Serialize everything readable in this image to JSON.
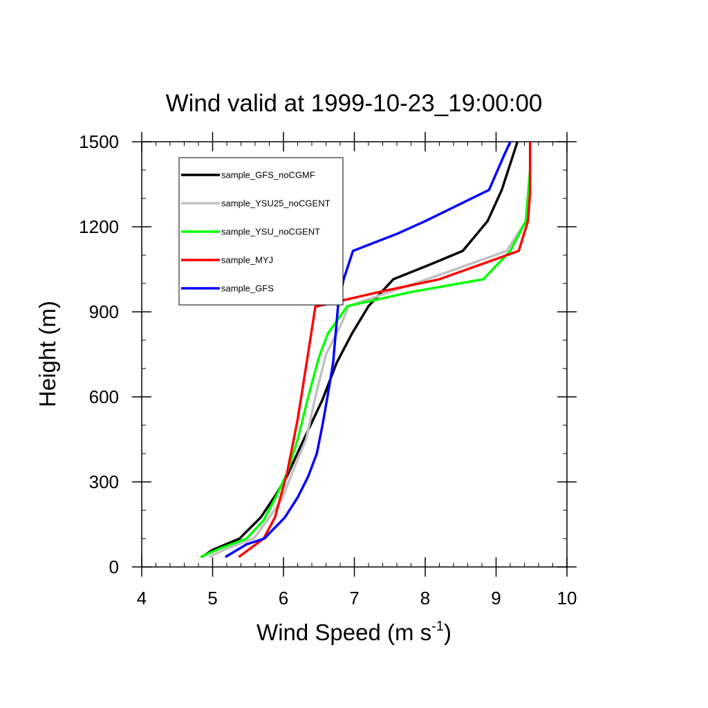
{
  "chart_data": {
    "type": "line",
    "title": "Wind valid at 1999-10-23_19:00:00",
    "xlabel": "Wind Speed (m s",
    "xlabel_superscript": "-1",
    "xlabel_suffix": ")",
    "ylabel": "Height (m)",
    "xlim": [
      4,
      10
    ],
    "ylim": [
      0,
      1500
    ],
    "x_ticks": [
      "4",
      "5",
      "6",
      "7",
      "8",
      "9",
      "10"
    ],
    "y_ticks": [
      "0",
      "300",
      "600",
      "900",
      "1200",
      "1500"
    ],
    "grid": false,
    "legend_position": "upper-left inside plot",
    "series": [
      {
        "name": "sample_GFS_noCGMF",
        "color": "#000000",
        "points": [
          [
            4.85,
            35
          ],
          [
            5.0,
            60
          ],
          [
            5.38,
            100
          ],
          [
            5.68,
            175
          ],
          [
            5.88,
            250
          ],
          [
            6.05,
            320
          ],
          [
            6.25,
            430
          ],
          [
            6.55,
            590
          ],
          [
            6.75,
            720
          ],
          [
            6.97,
            825
          ],
          [
            7.2,
            920
          ],
          [
            7.55,
            1015
          ],
          [
            8.05,
            1065
          ],
          [
            8.53,
            1115
          ],
          [
            8.88,
            1220
          ],
          [
            9.08,
            1330
          ],
          [
            9.23,
            1445
          ],
          [
            9.3,
            1500
          ]
        ]
      },
      {
        "name": "sample_YSU25_noCGENT",
        "color": "#c0c0c0",
        "points": [
          [
            4.95,
            35
          ],
          [
            5.2,
            65
          ],
          [
            5.58,
            100
          ],
          [
            5.8,
            175
          ],
          [
            5.98,
            240
          ],
          [
            6.15,
            350
          ],
          [
            6.32,
            450
          ],
          [
            6.45,
            600
          ],
          [
            6.6,
            750
          ],
          [
            6.82,
            860
          ],
          [
            6.92,
            920
          ],
          [
            7.5,
            970
          ],
          [
            8.2,
            1030
          ],
          [
            9.15,
            1115
          ],
          [
            9.42,
            1220
          ],
          [
            9.48,
            1400
          ],
          [
            9.48,
            1500
          ]
        ]
      },
      {
        "name": "sample_YSU_noCGENT",
        "color": "#00ff00",
        "points": [
          [
            4.83,
            35
          ],
          [
            5.1,
            65
          ],
          [
            5.48,
            100
          ],
          [
            5.72,
            165
          ],
          [
            5.88,
            240
          ],
          [
            6.05,
            330
          ],
          [
            6.2,
            450
          ],
          [
            6.35,
            600
          ],
          [
            6.5,
            740
          ],
          [
            6.63,
            825
          ],
          [
            6.9,
            920
          ],
          [
            7.8,
            970
          ],
          [
            8.82,
            1015
          ],
          [
            9.2,
            1115
          ],
          [
            9.42,
            1220
          ],
          [
            9.48,
            1400
          ],
          [
            9.48,
            1500
          ]
        ]
      },
      {
        "name": "sample_MYJ",
        "color": "#ff0000",
        "points": [
          [
            5.37,
            35
          ],
          [
            5.72,
            100
          ],
          [
            5.88,
            175
          ],
          [
            6.05,
            330
          ],
          [
            6.2,
            520
          ],
          [
            6.34,
            740
          ],
          [
            6.45,
            918
          ],
          [
            7.35,
            970
          ],
          [
            8.2,
            1015
          ],
          [
            9.32,
            1115
          ],
          [
            9.45,
            1220
          ],
          [
            9.48,
            1320
          ],
          [
            9.48,
            1500
          ]
        ]
      },
      {
        "name": "sample_GFS",
        "color": "#0000ff",
        "points": [
          [
            5.18,
            35
          ],
          [
            5.48,
            80
          ],
          [
            5.73,
            100
          ],
          [
            6.02,
            175
          ],
          [
            6.2,
            245
          ],
          [
            6.35,
            320
          ],
          [
            6.47,
            400
          ],
          [
            6.55,
            500
          ],
          [
            6.62,
            600
          ],
          [
            6.7,
            720
          ],
          [
            6.77,
            920
          ],
          [
            6.85,
            1015
          ],
          [
            6.98,
            1115
          ],
          [
            7.6,
            1175
          ],
          [
            8.0,
            1220
          ],
          [
            8.9,
            1330
          ],
          [
            9.1,
            1445
          ],
          [
            9.2,
            1500
          ]
        ]
      }
    ]
  }
}
